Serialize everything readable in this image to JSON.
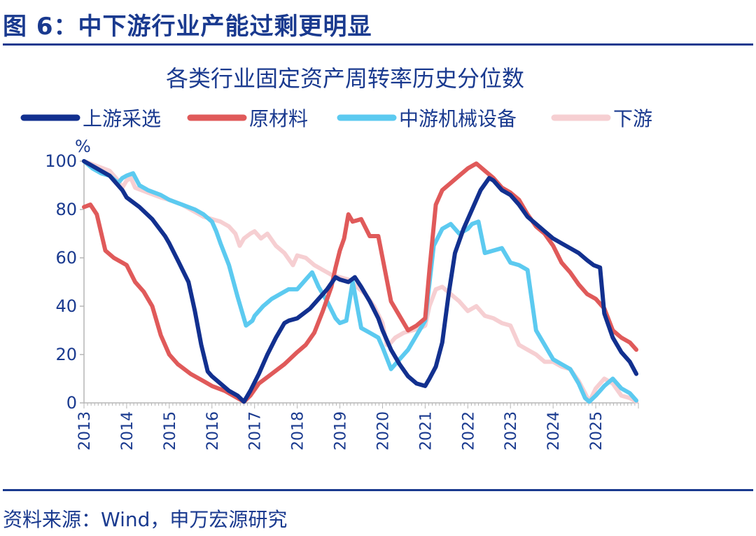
{
  "figure": {
    "title": "图 6：中下游行业产能过剩更明显",
    "source": "资料来源：Wind，申万宏源研究"
  },
  "colors": {
    "accent": "#1a3a8f"
  },
  "chart_data": {
    "type": "line",
    "title": "各类行业固定资产周转率历史分位数",
    "ylabel": "%",
    "xlabel": "",
    "ylim": [
      0,
      100
    ],
    "yticks": [
      0,
      20,
      40,
      60,
      80,
      100
    ],
    "xlim": [
      2013.0,
      2026.0
    ],
    "xticks": [
      2013,
      2014,
      2015,
      2016,
      2017,
      2018,
      2019,
      2020,
      2021,
      2022,
      2023,
      2024,
      2025
    ],
    "xtick_labels": [
      "2013",
      "2014",
      "2015",
      "2016",
      "2017",
      "2018",
      "2019",
      "2020",
      "2021",
      "2022",
      "2023",
      "2024",
      "2025"
    ],
    "legend_position": "top",
    "series": [
      {
        "name": "上游采选",
        "color": "#12308f",
        "x": [
          2013.0,
          2013.3,
          2013.6,
          2013.9,
          2014.0,
          2014.3,
          2014.6,
          2014.9,
          2015.0,
          2015.2,
          2015.45,
          2015.6,
          2015.75,
          2015.9,
          2016.0,
          2016.2,
          2016.4,
          2016.6,
          2016.75,
          2016.9,
          2017.1,
          2017.3,
          2017.5,
          2017.7,
          2017.8,
          2018.0,
          2018.3,
          2018.5,
          2018.7,
          2018.9,
          2019.0,
          2019.2,
          2019.35,
          2019.5,
          2019.7,
          2019.9,
          2020.0,
          2020.2,
          2020.4,
          2020.6,
          2020.8,
          2021.0,
          2021.1,
          2021.25,
          2021.4,
          2021.55,
          2021.7,
          2021.9,
          2022.1,
          2022.3,
          2022.5,
          2022.6,
          2022.8,
          2023.0,
          2023.2,
          2023.4,
          2023.6,
          2023.8,
          2024.0,
          2024.2,
          2024.4,
          2024.6,
          2024.8,
          2024.95,
          2025.1,
          2025.2,
          2025.4,
          2025.6,
          2025.8,
          2025.95
        ],
        "values": [
          100,
          97,
          94,
          88,
          85,
          81,
          76,
          69,
          66,
          59,
          50,
          38,
          24,
          13,
          11,
          8,
          5,
          3,
          0.5,
          5,
          12,
          20,
          27,
          33,
          34,
          35,
          39,
          43,
          47,
          52,
          51,
          50,
          52,
          48,
          42,
          35,
          30,
          22,
          16,
          11,
          8,
          7,
          10,
          15,
          25,
          45,
          62,
          72,
          80,
          88,
          93,
          92,
          88,
          86,
          82,
          77,
          74,
          71,
          68,
          66,
          64,
          62,
          59,
          57,
          56,
          37,
          27,
          21,
          17,
          12
        ]
      },
      {
        "name": "原材料",
        "color": "#e05a5a",
        "x": [
          2013.0,
          2013.15,
          2013.3,
          2013.5,
          2013.7,
          2013.9,
          2014.0,
          2014.2,
          2014.4,
          2014.6,
          2014.8,
          2015.0,
          2015.2,
          2015.5,
          2015.8,
          2016.0,
          2016.3,
          2016.6,
          2016.75,
          2016.9,
          2017.1,
          2017.4,
          2017.7,
          2018.0,
          2018.2,
          2018.4,
          2018.6,
          2018.8,
          2018.9,
          2019.0,
          2019.1,
          2019.2,
          2019.3,
          2019.5,
          2019.7,
          2019.9,
          2020.0,
          2020.2,
          2020.4,
          2020.6,
          2020.8,
          2021.0,
          2021.1,
          2021.25,
          2021.4,
          2021.6,
          2021.8,
          2022.0,
          2022.2,
          2022.4,
          2022.6,
          2022.8,
          2023.0,
          2023.2,
          2023.4,
          2023.6,
          2023.8,
          2024.0,
          2024.2,
          2024.4,
          2024.6,
          2024.8,
          2025.0,
          2025.2,
          2025.4,
          2025.6,
          2025.8,
          2025.95
        ],
        "values": [
          81,
          82,
          78,
          63,
          60,
          58,
          57,
          50,
          46,
          40,
          28,
          20,
          16,
          12,
          9,
          7,
          5,
          2,
          0.5,
          3,
          8,
          12,
          16,
          21,
          24,
          29,
          38,
          48,
          56,
          63,
          68,
          78,
          75,
          76,
          69,
          69,
          60,
          42,
          36,
          30,
          32,
          35,
          55,
          82,
          88,
          91,
          94,
          97,
          99,
          96,
          93,
          89,
          87,
          84,
          78,
          73,
          70,
          65,
          58,
          54,
          49,
          45,
          43,
          39,
          30,
          27,
          25,
          22
        ]
      },
      {
        "name": "中游机械设备",
        "color": "#5ccaf0",
        "x": [
          2013.0,
          2013.2,
          2013.4,
          2013.6,
          2013.8,
          2013.9,
          2014.0,
          2014.15,
          2014.3,
          2014.5,
          2014.8,
          2015.0,
          2015.3,
          2015.6,
          2015.8,
          2016.0,
          2016.1,
          2016.2,
          2016.4,
          2016.6,
          2016.8,
          2016.95,
          2017.0,
          2017.2,
          2017.4,
          2017.6,
          2017.8,
          2018.0,
          2018.2,
          2018.35,
          2018.5,
          2018.7,
          2018.9,
          2019.0,
          2019.15,
          2019.3,
          2019.5,
          2019.7,
          2019.9,
          2020.0,
          2020.2,
          2020.4,
          2020.6,
          2020.8,
          2021.0,
          2021.2,
          2021.4,
          2021.6,
          2021.8,
          2022.0,
          2022.1,
          2022.25,
          2022.4,
          2022.6,
          2022.8,
          2023.0,
          2023.2,
          2023.4,
          2023.6,
          2023.8,
          2024.0,
          2024.2,
          2024.4,
          2024.6,
          2024.75,
          2024.85,
          2025.0,
          2025.2,
          2025.4,
          2025.6,
          2025.8,
          2025.95
        ],
        "values": [
          100,
          97,
          95,
          94,
          91,
          93,
          94,
          95,
          90,
          88,
          86,
          84,
          82,
          80,
          78,
          75,
          71,
          66,
          57,
          44,
          32,
          34,
          36,
          40,
          43,
          45,
          47,
          47,
          51,
          54,
          48,
          42,
          35,
          33,
          34,
          50,
          31,
          29,
          27,
          23,
          14,
          18,
          22,
          28,
          34,
          65,
          72,
          74,
          70,
          72,
          74,
          75,
          62,
          63,
          64,
          58,
          57,
          55,
          30,
          24,
          18,
          16,
          14,
          8,
          2,
          0.5,
          3,
          7,
          10,
          6,
          4,
          1
        ]
      },
      {
        "name": "下游",
        "color": "#f6cfd2",
        "x": [
          2013.0,
          2013.3,
          2013.6,
          2013.8,
          2013.9,
          2014.0,
          2014.1,
          2014.2,
          2014.5,
          2014.8,
          2015.0,
          2015.3,
          2015.6,
          2015.8,
          2016.0,
          2016.2,
          2016.4,
          2016.55,
          2016.65,
          2016.75,
          2016.9,
          2017.0,
          2017.15,
          2017.3,
          2017.5,
          2017.7,
          2017.9,
          2018.0,
          2018.2,
          2018.4,
          2018.6,
          2018.8,
          2019.0,
          2019.2,
          2019.4,
          2019.6,
          2019.8,
          2020.0,
          2020.1,
          2020.2,
          2020.3,
          2020.5,
          2020.7,
          2020.9,
          2021.0,
          2021.1,
          2021.25,
          2021.4,
          2021.6,
          2021.8,
          2022.0,
          2022.2,
          2022.4,
          2022.6,
          2022.8,
          2023.0,
          2023.2,
          2023.4,
          2023.6,
          2023.8,
          2024.0,
          2024.2,
          2024.4,
          2024.6,
          2024.75,
          2024.85,
          2025.0,
          2025.2,
          2025.4,
          2025.6,
          2025.8,
          2025.95
        ],
        "values": [
          100,
          98,
          96,
          92,
          89,
          92,
          93,
          89,
          87,
          85,
          84,
          82,
          79,
          77,
          76,
          75,
          73,
          70,
          65,
          68,
          70,
          71,
          68,
          70,
          65,
          62,
          57,
          61,
          60,
          57,
          55,
          53,
          52,
          51,
          48,
          45,
          40,
          33,
          24,
          25,
          27,
          29,
          30,
          31,
          32,
          40,
          47,
          48,
          45,
          42,
          38,
          40,
          36,
          35,
          33,
          32,
          24,
          22,
          20,
          17,
          17,
          15,
          14,
          9,
          4,
          0.5,
          6,
          10,
          8,
          3,
          2,
          0.5
        ]
      }
    ]
  }
}
